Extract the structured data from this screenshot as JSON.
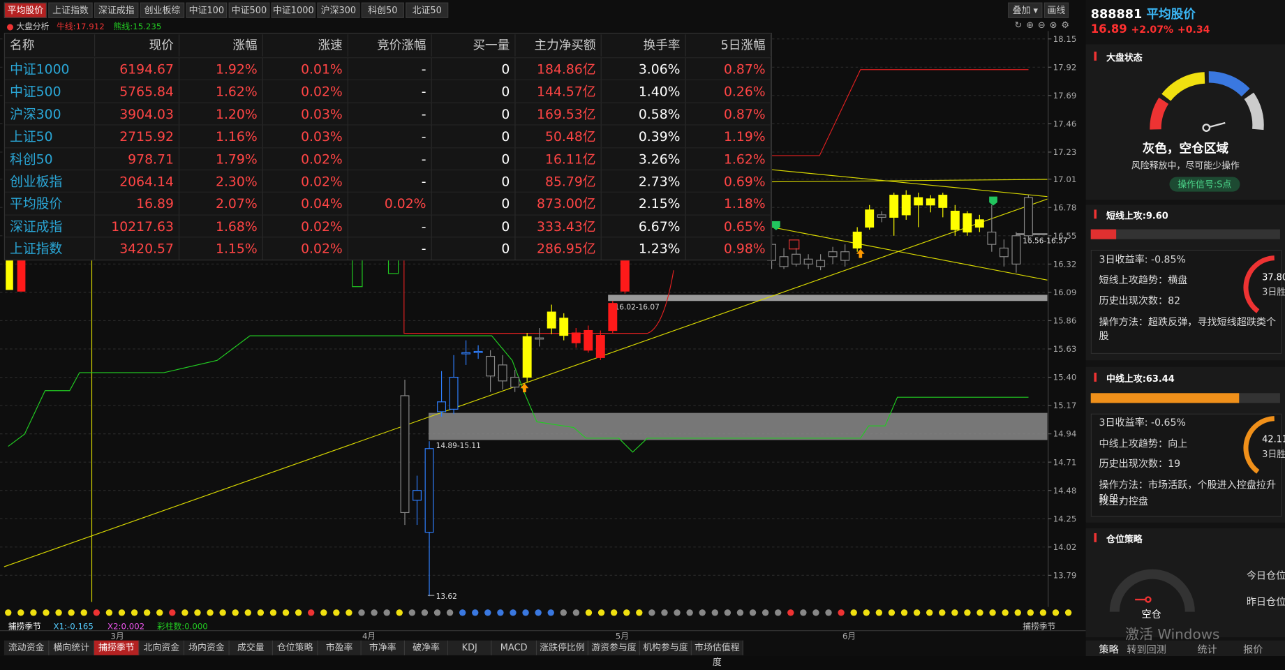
{
  "top_tabs": [
    "平均股价",
    "上证指数",
    "深证成指",
    "创业板综",
    "中证100",
    "中证500",
    "中证1000",
    "沪深300",
    "科创50",
    "北证50"
  ],
  "toolbar": {
    "overlay": "叠加",
    "draw": "画线"
  },
  "indicator": {
    "name": "大盘分析",
    "bull": "牛线:17.912",
    "bear": "熊线:15.235"
  },
  "table": {
    "header": [
      "名称",
      "现价",
      "涨幅",
      "涨速",
      "竞价涨幅",
      "买一量",
      "主力净买额",
      "换手率",
      "5日涨幅"
    ],
    "rows": [
      [
        "中证1000",
        "6194.67",
        "1.92%",
        "0.01%",
        "-",
        "0",
        "184.86亿",
        "3.06%",
        "0.87%"
      ],
      [
        "中证500",
        "5765.84",
        "1.62%",
        "0.02%",
        "-",
        "0",
        "144.57亿",
        "1.40%",
        "0.26%"
      ],
      [
        "沪深300",
        "3904.03",
        "1.20%",
        "0.03%",
        "-",
        "0",
        "169.53亿",
        "0.58%",
        "0.87%"
      ],
      [
        "上证50",
        "2715.92",
        "1.16%",
        "0.03%",
        "-",
        "0",
        "50.48亿",
        "0.39%",
        "1.19%"
      ],
      [
        "科创50",
        "978.71",
        "1.79%",
        "0.02%",
        "-",
        "0",
        "16.11亿",
        "3.26%",
        "1.62%"
      ],
      [
        "创业板指",
        "2064.14",
        "2.30%",
        "0.02%",
        "-",
        "0",
        "85.79亿",
        "2.73%",
        "0.69%"
      ],
      [
        "平均股价",
        "16.89",
        "2.07%",
        "0.04%",
        "0.02%",
        "0",
        "873.00亿",
        "2.15%",
        "1.18%"
      ],
      [
        "深证成指",
        "10217.63",
        "1.68%",
        "0.02%",
        "-",
        "0",
        "333.43亿",
        "6.67%",
        "0.65%"
      ],
      [
        "上证指数",
        "3420.57",
        "1.15%",
        "0.02%",
        "-",
        "0",
        "286.95亿",
        "1.23%",
        "0.98%"
      ]
    ]
  },
  "chart_data": {
    "type": "candlestick",
    "ylim": [
      13.54,
      18.2
    ],
    "yticks": [
      18.15,
      17.92,
      17.69,
      17.46,
      17.23,
      17.01,
      16.78,
      16.55,
      16.32,
      16.09,
      15.86,
      15.63,
      {
        "value": 15.4,
        "label": "15.40"
      },
      15.17,
      14.94,
      14.71,
      14.48,
      14.25,
      14.02,
      13.79
    ],
    "candles": [
      {
        "open": 14.3,
        "high": 15.38,
        "low": 14.2,
        "close": 15.25,
        "color": "#8a8a8a",
        "filled": false
      },
      {
        "open": 14.48,
        "high": 14.6,
        "low": 14.2,
        "close": 14.4,
        "color": "#2f7fff",
        "filled": false
      },
      {
        "open": 14.82,
        "high": 14.88,
        "low": 13.62,
        "close": 14.14,
        "color": "#2f7fff",
        "filled": false
      },
      {
        "open": 15.12,
        "high": 15.45,
        "low": 15.08,
        "close": 15.2,
        "color": "#2f7fff",
        "filled": false
      },
      {
        "open": 15.4,
        "high": 15.58,
        "low": 15.1,
        "close": 15.14,
        "color": "#2f7fff",
        "filled": false
      },
      {
        "open": 15.6,
        "high": 15.7,
        "low": 15.5,
        "close": 15.59,
        "color": "#2f7fff",
        "filled": false
      },
      {
        "open": 15.61,
        "high": 15.66,
        "low": 15.55,
        "close": 15.6,
        "color": "#2f7fff",
        "filled": false
      },
      {
        "open": 15.41,
        "high": 15.62,
        "low": 15.28,
        "close": 15.57,
        "color": "#8a8a8a",
        "filled": false
      },
      {
        "open": 15.5,
        "high": 15.58,
        "low": 15.3,
        "close": 15.37,
        "color": "#8a8a8a",
        "filled": false
      },
      {
        "open": 15.4,
        "high": 15.46,
        "low": 15.28,
        "close": 15.32,
        "color": "#8a8a8a",
        "filled": false
      },
      {
        "open": 15.4,
        "high": 15.76,
        "low": 15.36,
        "close": 15.73,
        "color": "#ffff00",
        "filled": true
      },
      {
        "open": 15.72,
        "high": 15.8,
        "low": 15.65,
        "close": 15.71,
        "color": "#8a8a8a",
        "filled": false
      },
      {
        "open": 15.8,
        "high": 15.99,
        "low": 15.75,
        "close": 15.93,
        "color": "#ffff00",
        "filled": true
      },
      {
        "open": 15.88,
        "high": 15.92,
        "low": 15.7,
        "close": 15.74,
        "color": "#ffff00",
        "filled": true
      },
      {
        "open": 15.76,
        "high": 15.8,
        "low": 15.64,
        "close": 15.68,
        "color": "#ff1a1a",
        "filled": true
      },
      {
        "open": 15.78,
        "high": 15.82,
        "low": 15.6,
        "close": 15.62,
        "color": "#ff1a1a",
        "filled": true
      },
      {
        "open": 15.74,
        "high": 15.78,
        "low": 15.54,
        "close": 15.56,
        "color": "#ff1a1a",
        "filled": true
      },
      {
        "open": 15.78,
        "high": 16.02,
        "low": 15.76,
        "close": 16.0,
        "color": "#ff1a1a",
        "filled": true
      },
      {
        "open": 16.1,
        "high": 16.42,
        "low": 16.08,
        "close": 16.38,
        "color": "#ff1a1a",
        "filled": true
      },
      null,
      null,
      null,
      null,
      null,
      null,
      null,
      null,
      null,
      null,
      null,
      {
        "open": 16.48,
        "high": 16.6,
        "low": 16.28,
        "close": 16.35,
        "color": "#8a8a8a",
        "filled": false
      },
      {
        "open": 16.3,
        "high": 16.45,
        "low": 16.28,
        "close": 16.38,
        "color": "#8a8a8a",
        "filled": false
      },
      {
        "open": 16.4,
        "high": 16.45,
        "low": 16.3,
        "close": 16.32,
        "color": "#8a8a8a",
        "filled": false
      },
      {
        "open": 16.32,
        "high": 16.4,
        "low": 16.28,
        "close": 16.36,
        "color": "#8a8a8a",
        "filled": false
      },
      {
        "open": 16.35,
        "high": 16.4,
        "low": 16.27,
        "close": 16.3,
        "color": "#8a8a8a",
        "filled": false
      },
      {
        "open": 16.38,
        "high": 16.46,
        "low": 16.32,
        "close": 16.42,
        "color": "#8a8a8a",
        "filled": false
      },
      {
        "open": 16.42,
        "high": 16.48,
        "low": 16.3,
        "close": 16.35,
        "color": "#8a8a8a",
        "filled": false
      },
      {
        "open": 16.45,
        "high": 16.62,
        "low": 16.42,
        "close": 16.58,
        "color": "#ffff00",
        "filled": true
      },
      {
        "open": 16.62,
        "high": 16.8,
        "low": 16.6,
        "close": 16.76,
        "color": "#ffff00",
        "filled": true
      },
      {
        "open": 16.72,
        "high": 16.75,
        "low": 16.66,
        "close": 16.7,
        "color": "#8a8a8a",
        "filled": false
      },
      {
        "open": 16.7,
        "high": 16.9,
        "low": 16.55,
        "close": 16.88,
        "color": "#ffff00",
        "filled": true
      },
      {
        "open": 16.88,
        "high": 16.92,
        "low": 16.68,
        "close": 16.72,
        "color": "#ffff00",
        "filled": true
      },
      {
        "open": 16.8,
        "high": 16.9,
        "low": 16.62,
        "close": 16.86,
        "color": "#ffff00",
        "filled": true
      },
      {
        "open": 16.85,
        "high": 16.88,
        "low": 16.74,
        "close": 16.8,
        "color": "#ffff00",
        "filled": true
      },
      {
        "open": 16.88,
        "high": 16.9,
        "low": 16.7,
        "close": 16.78,
        "color": "#ffff00",
        "filled": true
      },
      {
        "open": 16.75,
        "high": 16.8,
        "low": 16.55,
        "close": 16.6,
        "color": "#ffff00",
        "filled": true
      },
      {
        "open": 16.58,
        "high": 16.75,
        "low": 16.55,
        "close": 16.73,
        "color": "#ffff00",
        "filled": true
      },
      {
        "open": 16.68,
        "high": 16.72,
        "low": 16.58,
        "close": 16.62,
        "color": "#ffff00",
        "filled": true
      },
      {
        "open": 16.58,
        "high": 16.8,
        "low": 16.42,
        "close": 16.48,
        "color": "#8a8a8a",
        "filled": false
      },
      {
        "open": 16.45,
        "high": 16.52,
        "low": 16.3,
        "close": 16.38,
        "color": "#8a8a8a",
        "filled": false
      },
      {
        "open": 16.32,
        "high": 16.58,
        "low": 16.25,
        "close": 16.55,
        "color": "#8a8a8a",
        "filled": false
      },
      {
        "open": 16.55,
        "high": 16.88,
        "low": 16.5,
        "close": 16.86,
        "color": "#8a8a8a",
        "filled": false
      }
    ],
    "zones": [
      {
        "low": 14.89,
        "high": 15.11,
        "label": "14.89-15.11"
      },
      {
        "low": 16.02,
        "high": 16.07,
        "label": "16.02-16.07"
      },
      {
        "low": 16.56,
        "high": 16.57,
        "label": "16.56-16.57"
      }
    ],
    "annotations": [
      "13.62"
    ],
    "months": [
      "3月",
      "4月",
      "5月",
      "6月"
    ]
  },
  "footer_info": {
    "name": "捕捞季节",
    "x1": "X1:-0.165",
    "x2": "X2:0.002",
    "bars": "彩柱数:0.000",
    "right": "捕捞季节"
  },
  "bottom_tabs": [
    "流动资金",
    "横向统计",
    "捕捞季节",
    "北向资金",
    "场内资金",
    "成交量",
    "仓位策略",
    "市盈率",
    "市净率",
    "破净率",
    "KDJ",
    "MACD",
    "涨跌停比例",
    "游资参与度",
    "机构参与度",
    "市场估值程度"
  ],
  "side": {
    "code": "888881",
    "name": "平均股价",
    "price": "16.89",
    "pct": "+2.07%",
    "chg": "+0.34",
    "market": {
      "title": "大盘状态",
      "state": "灰色，空仓区域",
      "desc": "风险释放中，尽可能少操作",
      "signal": "操作信号:S点"
    },
    "short": {
      "title": "短线上攻:9.60",
      "lines": [
        "3日收益率: -0.85%",
        "短线上攻趋势：横盘",
        "历史出现次数：82",
        "操作方法：超跌反弹，寻找短线超跌类个股"
      ],
      "rate": "37.80",
      "rate_label": "3日胜"
    },
    "mid": {
      "title": "中线上攻:63.44",
      "lines": [
        "3日收益率: -0.65%",
        "中线上攻趋势：向上",
        "历史出现次数：19",
        "操作方法：市场活跃，个股进入控盘拉升阶段，",
        "找主力控盘"
      ],
      "rate": "42.11",
      "rate_label": "3日胜"
    },
    "position": {
      "title": "仓位策略",
      "state": "空仓",
      "today": "今日仓位",
      "yesterday": "昨日仓位"
    },
    "bottom": [
      "策略",
      "转到回测",
      "统计",
      "报价"
    ],
    "watermark": "激活 Windows"
  }
}
